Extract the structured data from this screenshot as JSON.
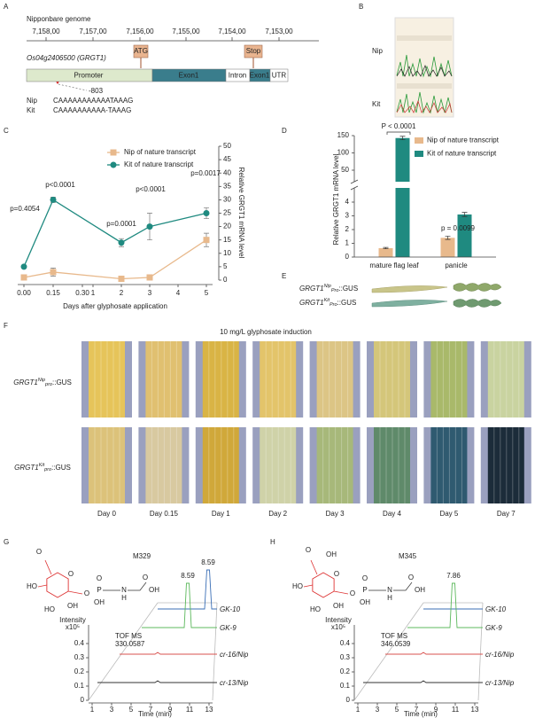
{
  "panel_labels": [
    "A",
    "B",
    "C",
    "D",
    "E",
    "F",
    "G",
    "H"
  ],
  "genome": {
    "title": "Nipponbare genome",
    "ticks": [
      "7,158,00",
      "7,157,00",
      "7,156,00",
      "7,155,00",
      "7,154,00",
      "7,153,00"
    ],
    "gene": "Os04g2406500 (GRGT1)",
    "start": "ATG",
    "stop": "Stop",
    "segments": [
      "Promoter",
      "Exon1",
      "Intron",
      "Exon1",
      "UTR"
    ],
    "snp_position": "-803",
    "alleles": [
      {
        "name": "Nip",
        "sequence": "CAAAAAAAAAAATAAAG"
      },
      {
        "name": "Kit",
        "sequence": "CAAAAAAAAAA-TAAAG"
      }
    ]
  },
  "sequencing": {
    "samples": [
      "Nip",
      "Kit"
    ]
  },
  "chart_data": [
    {
      "type": "line",
      "x_label": "Days after glyphosate application",
      "y_label": "Relative GRGT1 mRNA level",
      "y_axis_side": "right",
      "x": [
        0,
        0.15,
        2,
        3,
        5
      ],
      "xlim": [
        0,
        5
      ],
      "xticks": [
        {
          "value": 0,
          "label": "0.00"
        },
        0.15,
        {
          "value": 0.3,
          "label": "0.30"
        },
        1,
        2,
        3,
        4,
        5
      ],
      "x_break": [
        0.3,
        1
      ],
      "ylim": [
        0,
        50
      ],
      "yticks": [
        0,
        5,
        10,
        15,
        20,
        25,
        30,
        35,
        40,
        45,
        50
      ],
      "series": [
        {
          "name": "Nip of nature transcript",
          "color": "#e8b98c",
          "marker": "square",
          "values": [
            1,
            3,
            0.5,
            1,
            15
          ],
          "errors": [
            0.8,
            1.5,
            0.3,
            0.5,
            2.5
          ]
        },
        {
          "name": "Kit of nature transcript",
          "color": "#1f8a80",
          "marker": "circle",
          "values": [
            5,
            30,
            14,
            20,
            25
          ],
          "errors": [
            0.5,
            1,
            1.5,
            5,
            2
          ]
        }
      ],
      "annotations": [
        "p=0.4054",
        "p<0.0001",
        "p=0.0001",
        "p<0.0001",
        "p=0.0017"
      ]
    },
    {
      "type": "bar",
      "y_label": "Relative GRGT1 mRNA level",
      "categories": [
        "mature flag leaf",
        "panicle"
      ],
      "series": [
        {
          "name": "Nip of nature transcript",
          "color": "#e8b98c",
          "values": [
            0.65,
            1.4
          ],
          "errors": [
            0.05,
            0.12
          ]
        },
        {
          "name": "Kit of nature transcript",
          "color": "#1f8a80",
          "values": [
            143,
            3.1
          ],
          "errors": [
            5,
            0.15
          ]
        }
      ],
      "ylim": [
        0,
        150
      ],
      "yticks": [
        0,
        1,
        2,
        3,
        4,
        50,
        100,
        150
      ],
      "y_break": [
        4,
        50
      ],
      "annotations": [
        "P < 0.0001",
        "p = 0.0099"
      ]
    }
  ],
  "gus_leaves": {
    "labels": [
      {
        "gene": "GRGT1",
        "allele": "Nip",
        "promoter": "Pro",
        "reporter": "::GUS"
      },
      {
        "gene": "GRGT1",
        "allele": "Kit",
        "promoter": "Pro",
        "reporter": "::GUS"
      }
    ]
  },
  "gus_induction": {
    "title": "10 mg/L glyphosate induction",
    "rows": [
      {
        "gene": "GRGT1",
        "allele": "Nip",
        "promoter": "pro",
        "reporter": "::GUS"
      },
      {
        "gene": "GRGT1",
        "allele": "Kit",
        "promoter": "pro",
        "reporter": "::GUS"
      }
    ],
    "days": [
      "Day 0",
      "Day 0.15",
      "Day 1",
      "Day 2",
      "Day 3",
      "Day 4",
      "Day 5",
      "Day 7"
    ]
  },
  "ms": [
    {
      "compound": "M329",
      "atoms_red": [
        "O",
        "HO",
        "HO",
        "OH",
        "O",
        "O"
      ],
      "atoms_black": [
        "P",
        "O",
        "OH",
        "N",
        "H",
        "O",
        "OH"
      ],
      "y_label": "Intensity",
      "y_unit": "x10⁵",
      "ms_label": "TOF MS",
      "mz": 330.0587,
      "samples": [
        "GK-10",
        "GK-9",
        "cr-16/Nip",
        "cr-13/Nip"
      ],
      "peaks": [
        8.59,
        8.59,
        null,
        null
      ],
      "yticks": [
        0,
        0.1,
        0.2,
        0.3,
        0.4
      ],
      "xticks": [
        1,
        3,
        5,
        7,
        9,
        11,
        13
      ],
      "x_label": "Time (min)"
    },
    {
      "compound": "M345",
      "atoms_red": [
        "O",
        "OH",
        "HO",
        "HO",
        "OH",
        "O",
        "O"
      ],
      "atoms_black": [
        "P",
        "O",
        "OH",
        "N",
        "H",
        "O",
        "OH"
      ],
      "y_label": "Intensity",
      "y_unit": "x10⁵",
      "ms_label": "TOF MS",
      "mz": 346.0539,
      "samples": [
        "GK-10",
        "GK-9",
        "cr-16/Nip",
        "cr-13/Nip"
      ],
      "peaks": [
        null,
        7.86,
        null,
        null
      ],
      "yticks": [
        0,
        0.1,
        0.2,
        0.3,
        0.4
      ],
      "xticks": [
        1,
        3,
        5,
        7,
        9,
        11,
        13
      ],
      "x_label": "Time (min)"
    }
  ]
}
